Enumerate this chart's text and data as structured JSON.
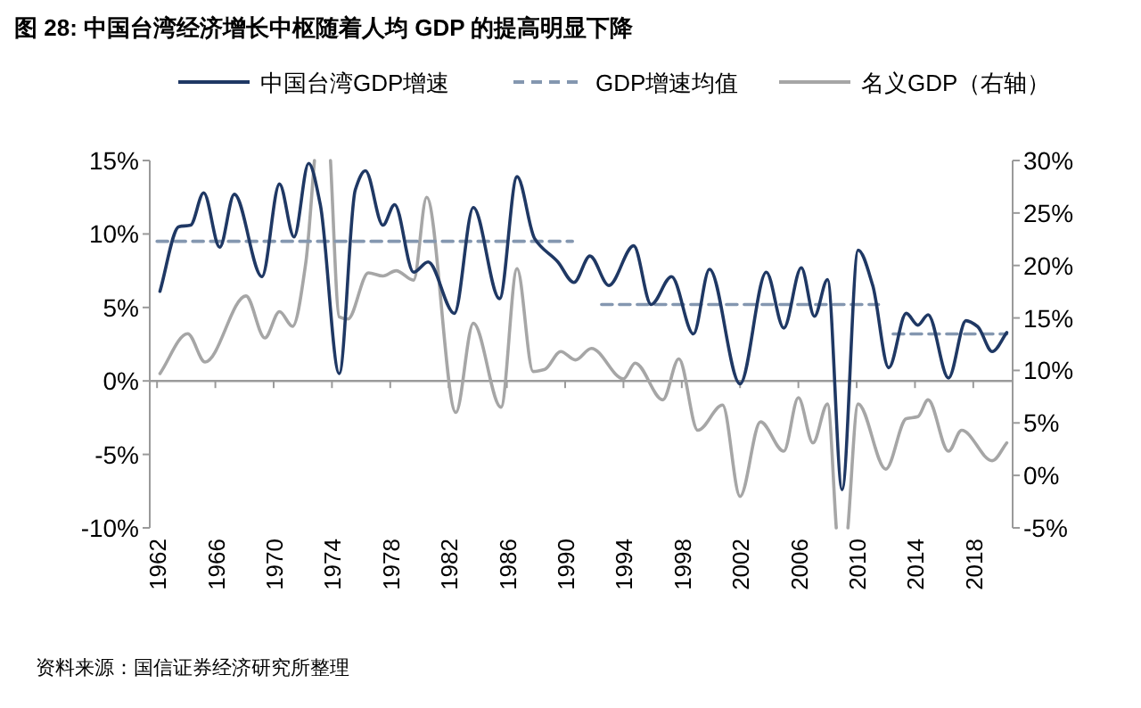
{
  "chart_data": {
    "type": "line",
    "title": "图 28: 中国台湾经济增长中枢随着人均 GDP 的提高明显下降",
    "annotations": [
      "资料来源：国信证券经济研究所整理"
    ],
    "xlim": [
      1961.5,
      2020.7
    ],
    "xticks": [
      1962,
      1966,
      1970,
      1974,
      1978,
      1982,
      1986,
      1990,
      1994,
      1998,
      2002,
      2006,
      2010,
      2014,
      2018
    ],
    "ylim": [
      -10,
      15
    ],
    "yticks": [
      {
        "value": -10,
        "label": "-10%"
      },
      {
        "value": -5,
        "label": "-5%"
      },
      {
        "value": 0,
        "label": "0%"
      },
      {
        "value": 5,
        "label": "5%"
      },
      {
        "value": 10,
        "label": "10%"
      },
      {
        "value": 15,
        "label": "15%"
      }
    ],
    "y2lim": [
      -5,
      30
    ],
    "y2ticks": [
      {
        "value": -5,
        "label": "-5%"
      },
      {
        "value": 0,
        "label": "0%"
      },
      {
        "value": 5,
        "label": "5%"
      },
      {
        "value": 10,
        "label": "10%"
      },
      {
        "value": 15,
        "label": "15%"
      },
      {
        "value": 20,
        "label": "20%"
      },
      {
        "value": 25,
        "label": "25%"
      },
      {
        "value": 30,
        "label": "30%"
      }
    ],
    "legend": "top",
    "series": [
      {
        "name": "中国台湾GDP增速",
        "color": "#1f3864",
        "line_style": "solid",
        "x": [
          1962.2,
          1963.5,
          1964.3,
          1965.2,
          1966.3,
          1967.3,
          1969.2,
          1970.4,
          1971.4,
          1972.4,
          1973.2,
          1974.5,
          1975.6,
          1976.3,
          1977.5,
          1978.3,
          1979.6,
          1980.6,
          1982.4,
          1983.7,
          1985.5,
          1986.7,
          1987.9,
          1989.5,
          1990.6,
          1991.7,
          1993,
          1994.7,
          1995.9,
          1997.3,
          1998.8,
          1999.9,
          2002,
          2003.8,
          2005,
          2006.2,
          2007.1,
          2008,
          2009,
          2010.1,
          2011.1,
          2012.2,
          2013.4,
          2014.2,
          2014.9,
          2016.3,
          2017.5,
          2018.3,
          2019.3,
          2020.3
        ],
        "values": [
          6.1,
          10.5,
          10.6,
          12.8,
          9.1,
          12.7,
          7.1,
          13.4,
          9.8,
          14.8,
          12.0,
          0.5,
          13.0,
          14.3,
          10.6,
          12.0,
          7.4,
          8.1,
          4.6,
          11.8,
          5.6,
          13.9,
          9.7,
          8.1,
          6.7,
          8.5,
          6.5,
          9.2,
          5.2,
          7.1,
          3.2,
          7.6,
          -0.2,
          7.4,
          3.6,
          7.7,
          4.4,
          6.9,
          -7.4,
          8.9,
          6.5,
          0.9,
          4.6,
          3.8,
          4.5,
          0.2,
          4.1,
          3.7,
          2.0,
          3.3
        ]
      },
      {
        "name": "GDP增速均值",
        "color": "#8497b0",
        "line_style": "dashed",
        "x": [
          1962,
          1990.5
        ],
        "values": [
          9.5,
          9.5
        ]
      },
      {
        "color": "#8497b0",
        "line_style": "dashed",
        "x": [
          1992.5,
          2011.5
        ],
        "values": [
          5.2,
          5.2
        ]
      },
      {
        "color": "#8497b0",
        "line_style": "dashed",
        "x": [
          2012.5,
          2020.3
        ],
        "values": [
          3.2,
          3.2
        ]
      },
      {
        "name": "名义GDP（右轴）",
        "color": "#a6a6a6",
        "line_style": "solid",
        "axis": "y2",
        "x": [
          1962.2,
          1964.1,
          1965.3,
          1968.1,
          1969.4,
          1970.4,
          1971.3,
          1972.2,
          1972.8
        ],
        "values": [
          9.7,
          13.5,
          10.8,
          17.1,
          13.1,
          15.6,
          14.2,
          20.2,
          30
        ]
      },
      {
        "color": "#a6a6a6",
        "line_style": "solid",
        "axis": "y2",
        "x": [
          1973.9,
          1974.5,
          1975.1,
          1976.5,
          1977.5,
          1978.4,
          1979.6,
          1980.5,
          1982.5,
          1983.7,
          1985.6,
          1986.7,
          1987.8,
          1988.6,
          1989.7,
          1990.7,
          1991.8,
          1994,
          1994.8,
          1996.7,
          1997.8,
          1999.1,
          2000.8,
          2002,
          2003.4,
          2005,
          2006,
          2007,
          2008,
          2008.6
        ],
        "values": [
          30,
          15.1,
          14.9,
          19.3,
          19.0,
          19.5,
          18.6,
          26.5,
          6.0,
          14.5,
          6.5,
          19.7,
          9.9,
          10.1,
          11.8,
          11.0,
          12.1,
          9.2,
          10.7,
          7.2,
          11.1,
          4.3,
          6.7,
          -2.0,
          5.1,
          2.3,
          7.4,
          3.1,
          6.8,
          -5
        ]
      },
      {
        "color": "#a6a6a6",
        "line_style": "solid",
        "axis": "y2",
        "x": [
          2009.4,
          2010.1,
          2012,
          2013.4,
          2014.2,
          2014.9,
          2016.3,
          2017.2,
          2019.3,
          2020.3
        ],
        "values": [
          -5,
          6.8,
          0.6,
          5.4,
          5.6,
          7.2,
          2.3,
          4.3,
          1.4,
          3.1
        ]
      }
    ]
  }
}
